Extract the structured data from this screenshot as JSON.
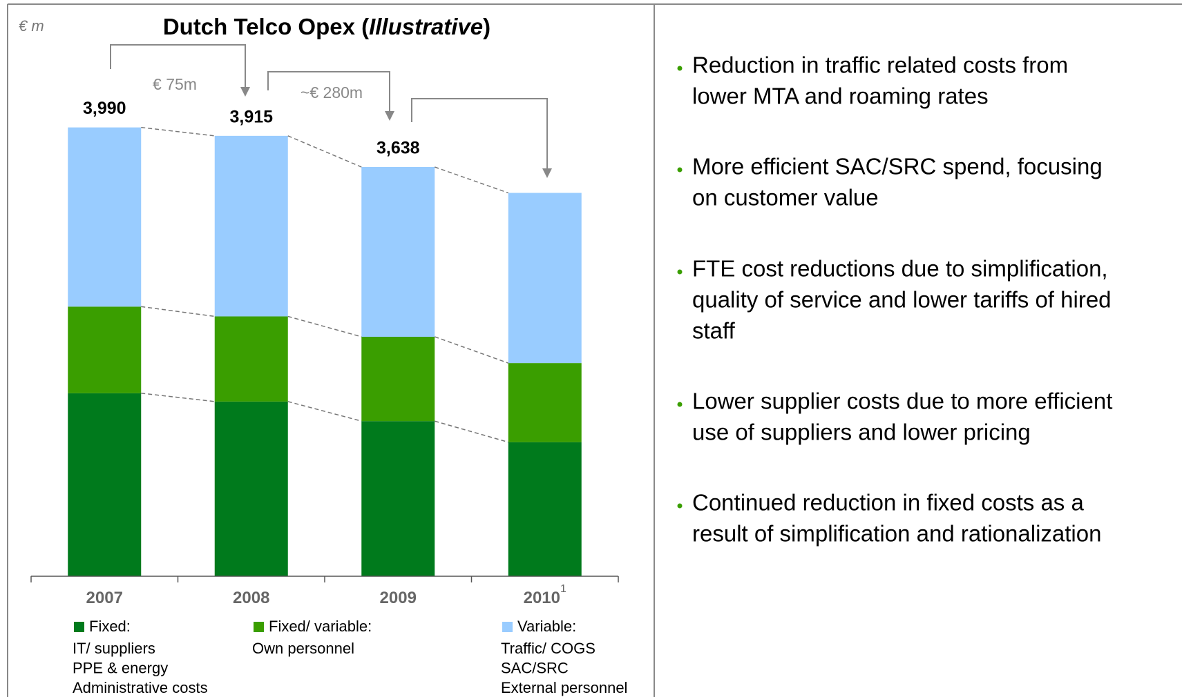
{
  "unit_label": "€ m",
  "chart_data": {
    "type": "stacked-bar",
    "title": "Dutch Telco Opex (",
    "title_italic": "Illustrative",
    "title_end": ")",
    "categories": [
      "2007",
      "2008",
      "2009",
      "2010"
    ],
    "category_notes": [
      null,
      null,
      null,
      "1"
    ],
    "series": [
      {
        "name": "Fixed:",
        "color": "#007a1c",
        "values": [
          1627,
          1553,
          1379,
          1192
        ],
        "description": [
          "IT/ suppliers",
          "PPE & energy",
          "Administrative costs"
        ]
      },
      {
        "name": "Fixed/ variable:",
        "color": "#3a9e00",
        "values": [
          770,
          757,
          750,
          703
        ],
        "description": [
          "Own personnel"
        ]
      },
      {
        "name": "Variable:",
        "color": "#99ccff",
        "values": [
          1593,
          1605,
          1509,
          1513
        ],
        "description": [
          "Traffic/ COGS",
          "SAC/SRC",
          "External personnel"
        ]
      }
    ],
    "totals": [
      3990,
      3915,
      3638
    ],
    "total_labels": [
      "3,990",
      "3,915",
      "3,638"
    ],
    "annotations": [
      "€ 75m",
      "~€ 280m"
    ],
    "ylim": [
      0,
      4000
    ]
  },
  "bullets": [
    [
      "Reduction in traffic related costs from",
      "lower MTA and roaming rates"
    ],
    [
      "More efficient SAC/SRC spend, focusing",
      "on customer value"
    ],
    [
      "FTE cost reductions due to simplification,",
      "quality of service and lower tariffs of hired",
      "staff"
    ],
    [
      "Lower supplier costs due to more efficient",
      "use of suppliers and lower pricing"
    ],
    [
      "Continued reduction in fixed costs as a",
      "result of simplification and rationalization"
    ]
  ]
}
